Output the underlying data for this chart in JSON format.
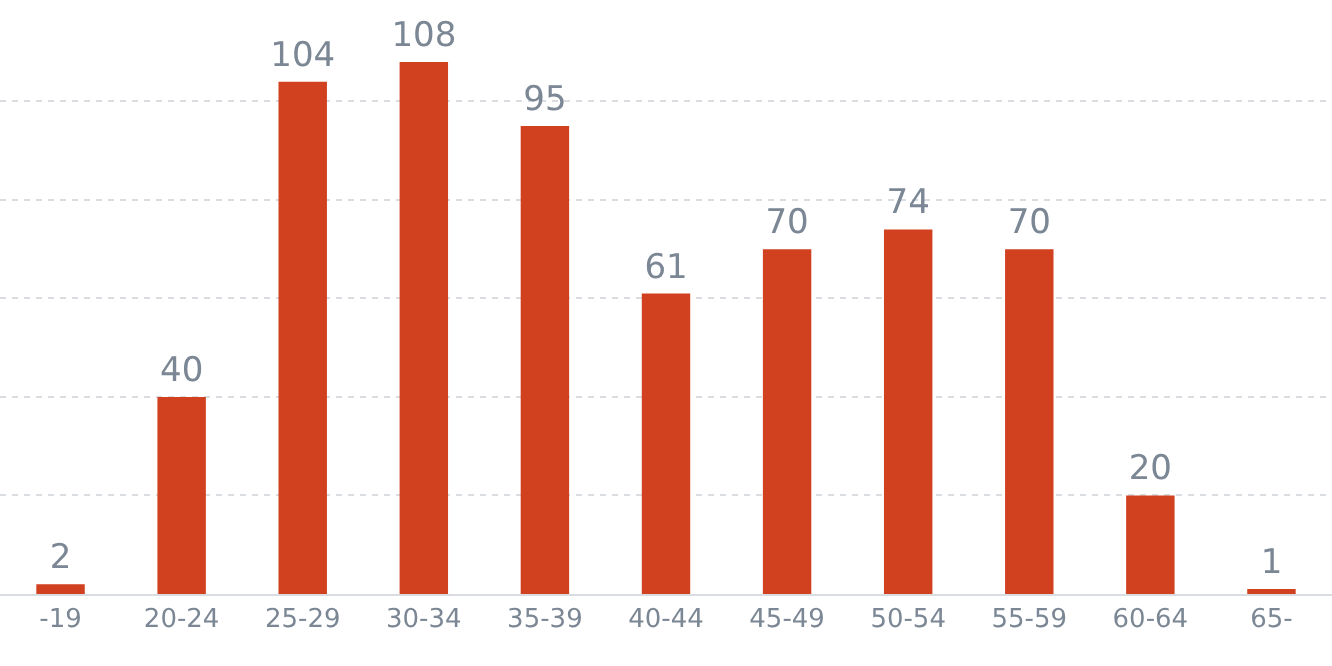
{
  "chart_data": {
    "type": "bar",
    "categories": [
      "-19",
      "20-24",
      "25-29",
      "30-34",
      "35-39",
      "40-44",
      "45-49",
      "50-54",
      "55-59",
      "60-64",
      "65-"
    ],
    "values": [
      2,
      40,
      104,
      108,
      95,
      61,
      70,
      74,
      70,
      20,
      1
    ],
    "color": "#d1401f",
    "data_labels": true,
    "tick_labels": "x",
    "grid": "y"
  }
}
